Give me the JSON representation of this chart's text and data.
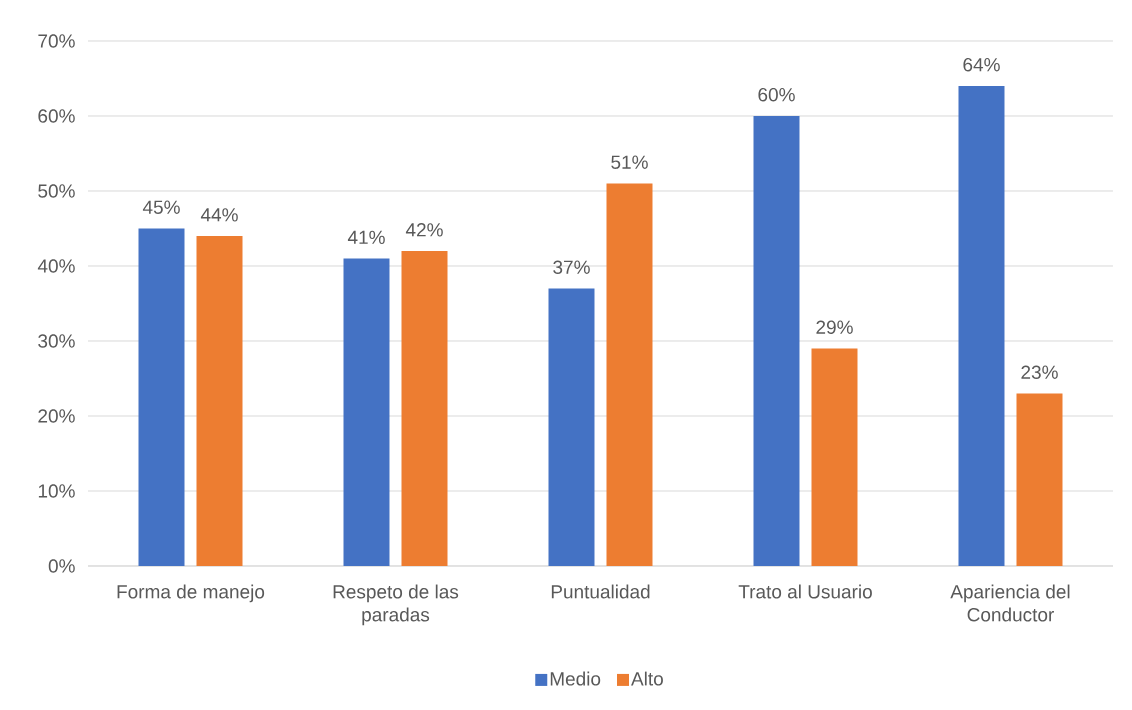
{
  "chart_data": {
    "type": "bar",
    "categories": [
      "Forma de manejo",
      "Respeto de las paradas",
      "Puntualidad",
      "Trato al Usuario",
      "Apariencia del Conductor"
    ],
    "series": [
      {
        "name": "Medio",
        "color": "#4472c4",
        "values": [
          45,
          41,
          37,
          60,
          64
        ],
        "value_labels": [
          "45%",
          "41%",
          "37%",
          "60%",
          "64%"
        ]
      },
      {
        "name": "Alto",
        "color": "#ed7d31",
        "values": [
          44,
          42,
          51,
          29,
          23
        ],
        "value_labels": [
          "44%",
          "42%",
          "51%",
          "29%",
          "23%"
        ]
      }
    ],
    "ylim": [
      0,
      70
    ],
    "yticks": [
      {
        "value": 0,
        "label": "0%"
      },
      {
        "value": 10,
        "label": "10%"
      },
      {
        "value": 20,
        "label": "20%"
      },
      {
        "value": 30,
        "label": "30%"
      },
      {
        "value": 40,
        "label": "40%"
      },
      {
        "value": 50,
        "label": "50%"
      },
      {
        "value": 60,
        "label": "60%"
      },
      {
        "value": 70,
        "label": "70%"
      }
    ],
    "grid": "y",
    "legend": "bottom"
  }
}
